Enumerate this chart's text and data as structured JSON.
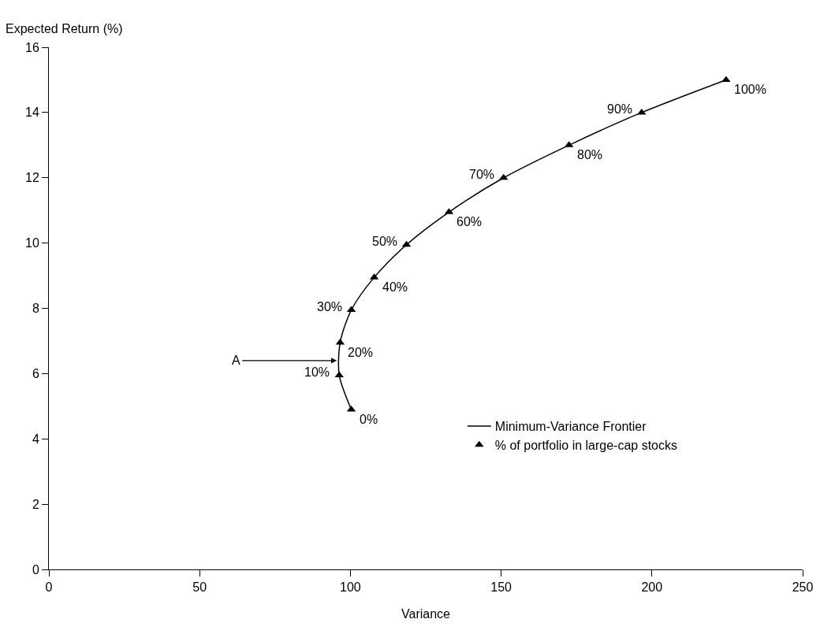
{
  "chart_data": {
    "type": "scatter",
    "xlabel": "Variance",
    "ylabel": "Expected Return (%)",
    "xlim": [
      0,
      250
    ],
    "xticks": [
      0,
      50,
      100,
      150,
      200,
      250
    ],
    "ylim": [
      0,
      16
    ],
    "yticks": [
      0,
      2,
      4,
      6,
      8,
      10,
      12,
      14,
      16
    ],
    "grid": false,
    "legend": "bottom right",
    "series": [
      {
        "name": "Minimum-Variance Frontier",
        "type": "line",
        "color": "#000000",
        "marker": "none",
        "line_style": "solid",
        "x": [
          100.3,
          96.3,
          96.6,
          100.3,
          107.9,
          118.6,
          132.7,
          150.8,
          172.5,
          196.6,
          224.6
        ],
        "values": [
          4.9,
          5.95,
          6.95,
          7.95,
          8.95,
          9.95,
          10.95,
          12,
          13,
          14,
          15
        ]
      },
      {
        "name": "% of portfolio in large-cap stocks",
        "color": "#000000",
        "marker": "triangle",
        "x": [
          100.3,
          96.3,
          96.6,
          100.3,
          107.9,
          118.6,
          132.7,
          150.8,
          172.5,
          196.6,
          224.6
        ],
        "values": [
          4.9,
          5.95,
          6.95,
          7.95,
          8.95,
          9.95,
          10.95,
          12,
          13,
          14,
          15
        ]
      }
    ],
    "annotations": [
      {
        "text": "A",
        "x": 95.5,
        "y": 6.4
      },
      {
        "text": "0%",
        "x": 100.3,
        "y": 4.9
      },
      {
        "text": "10%",
        "x": 96.3,
        "y": 5.95
      },
      {
        "text": "20%",
        "x": 96.6,
        "y": 6.95
      },
      {
        "text": "30%",
        "x": 100.3,
        "y": 7.95
      },
      {
        "text": "40%",
        "x": 107.9,
        "y": 8.95
      },
      {
        "text": "50%",
        "x": 118.6,
        "y": 9.95
      },
      {
        "text": "60%",
        "x": 132.7,
        "y": 10.95
      },
      {
        "text": "70%",
        "x": 150.8,
        "y": 12
      },
      {
        "text": "80%",
        "x": 172.5,
        "y": 13
      },
      {
        "text": "90%",
        "x": 196.6,
        "y": 14
      },
      {
        "text": "100%",
        "x": 224.6,
        "y": 15
      }
    ]
  }
}
